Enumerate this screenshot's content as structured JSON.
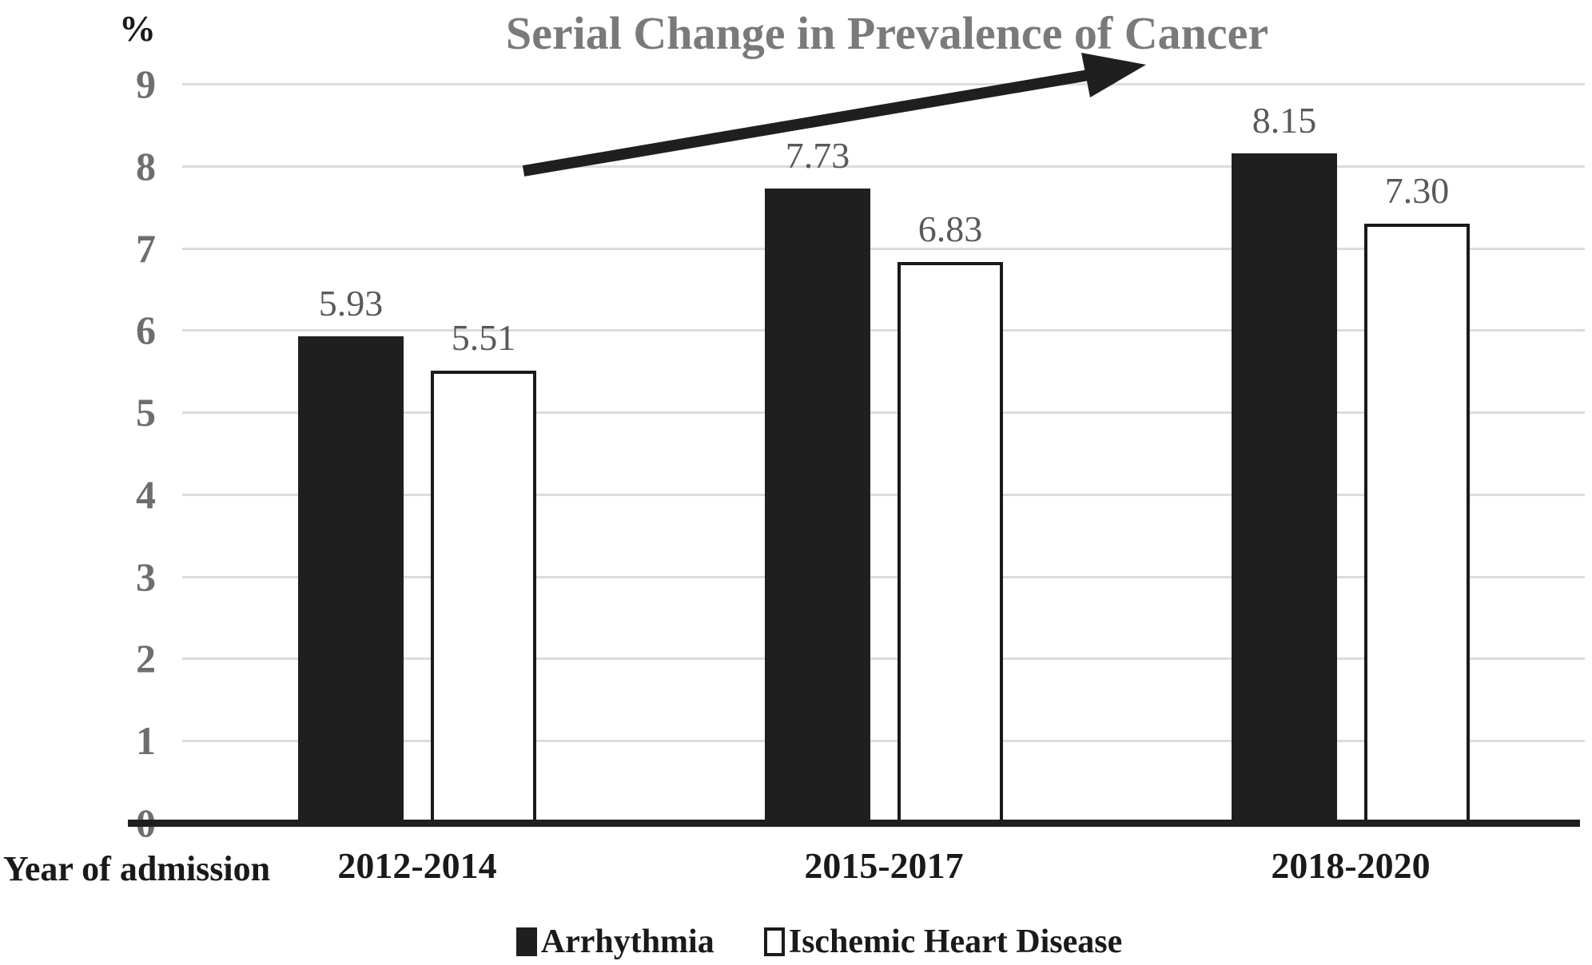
{
  "title": "Serial Change in Prevalence of Cancer",
  "y_axis": {
    "unit_label": "%",
    "ticks": [
      "0",
      "1",
      "2",
      "3",
      "4",
      "5",
      "6",
      "7",
      "8",
      "9"
    ]
  },
  "x_axis": {
    "label": "Year of admission",
    "categories": [
      "2012-2014",
      "2015-2017",
      "2018-2020"
    ]
  },
  "legend": {
    "items": [
      "Arrhythmia",
      "Ischemic Heart Disease"
    ]
  },
  "colors": {
    "title_gray": "#7a7a7a",
    "tick_gray": "#6e6e6e",
    "data_label_gray": "#595959",
    "bar_black": "#1f1f1f",
    "bar_white": "#ffffff",
    "bar_border": "#1a1a1a",
    "gridline": "#dcdcdc",
    "arrow_black": "#1f1f1f"
  },
  "chart_data": {
    "type": "bar",
    "title": "Serial Change in Prevalence of Cancer",
    "categories": [
      "2012-2014",
      "2015-2017",
      "2018-2020"
    ],
    "series": [
      {
        "name": "Arrhythmia",
        "values": [
          5.93,
          7.73,
          8.15
        ],
        "labels": [
          "5.93",
          "7.73",
          "8.15"
        ],
        "fill": "#1f1f1f"
      },
      {
        "name": "Ischemic Heart Disease",
        "values": [
          5.51,
          6.83,
          7.3
        ],
        "labels": [
          "5.51",
          "6.83",
          "7.30"
        ],
        "fill": "#ffffff",
        "border": "#1a1a1a"
      }
    ],
    "xlabel": "Year of admission",
    "ylabel": "%",
    "ylim": [
      0,
      9
    ],
    "ytick_step": 1,
    "grid": true,
    "legend_position": "bottom",
    "annotation": "upward trend arrow across chart"
  }
}
